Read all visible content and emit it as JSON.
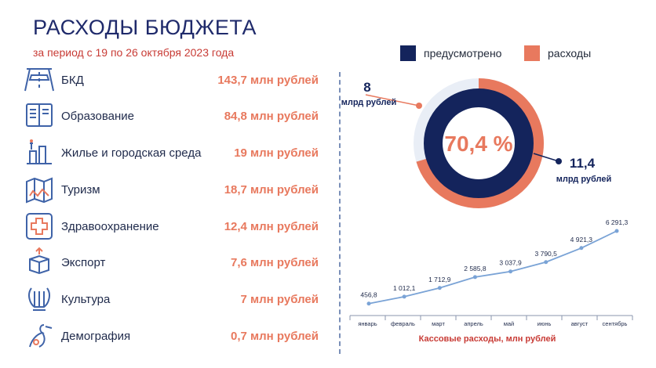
{
  "header": {
    "title": "РАСХОДЫ БЮДЖЕТА",
    "subtitle": "за период с 19 по 26 октября 2023 года"
  },
  "legend": {
    "planned_label": "предусмотрено",
    "spent_label": "расходы",
    "planned_color": "#14245c",
    "spent_color": "#e8795e"
  },
  "categories": [
    {
      "label": "БКД",
      "value": "143,7 млн рублей",
      "icon": "road-icon"
    },
    {
      "label": "Образование",
      "value": "84,8 млн рублей",
      "icon": "book-icon"
    },
    {
      "label": "Жилье и городская среда",
      "value": "19 млн рублей",
      "icon": "city-icon"
    },
    {
      "label": "Туризм",
      "value": "18,7 млн рублей",
      "icon": "map-icon"
    },
    {
      "label": "Здравоохранение",
      "value": "12,4 млн рублей",
      "icon": "medical-cross-icon"
    },
    {
      "label": "Экспорт",
      "value": "7,6 млн рублей",
      "icon": "export-box-icon"
    },
    {
      "label": "Культура",
      "value": "7 млн рублей",
      "icon": "lyre-icon"
    },
    {
      "label": "Демография",
      "value": "0,7 млн рублей",
      "icon": "stork-icon"
    }
  ],
  "donut": {
    "percent_label": "70,4 %",
    "spent_value": "8",
    "spent_unit": "млрд рублей",
    "planned_value": "11,4",
    "planned_unit": "млрд рублей"
  },
  "chart_data": [
    {
      "type": "pie",
      "categories": [
        "расходы",
        "предусмотрено"
      ],
      "values": [
        8,
        11.4
      ],
      "percent": 70.4
    },
    {
      "type": "line",
      "title": "",
      "xlabel": "Кассовые расходы, млн рублей",
      "categories": [
        "январь",
        "февраль",
        "март",
        "апрель",
        "май",
        "июнь",
        "август",
        "сентябрь"
      ],
      "values": [
        456.8,
        1012.1,
        1712.9,
        2585.8,
        3037.9,
        3790.5,
        4921.3,
        6291.3
      ],
      "value_labels": [
        "456,8",
        "1 012,1",
        "1 712,9",
        "2 585,8",
        "3 037,9",
        "3 790,5",
        "4 921,3",
        "6 291,3"
      ],
      "ylim": [
        0,
        6291.3
      ],
      "grid": false
    }
  ]
}
